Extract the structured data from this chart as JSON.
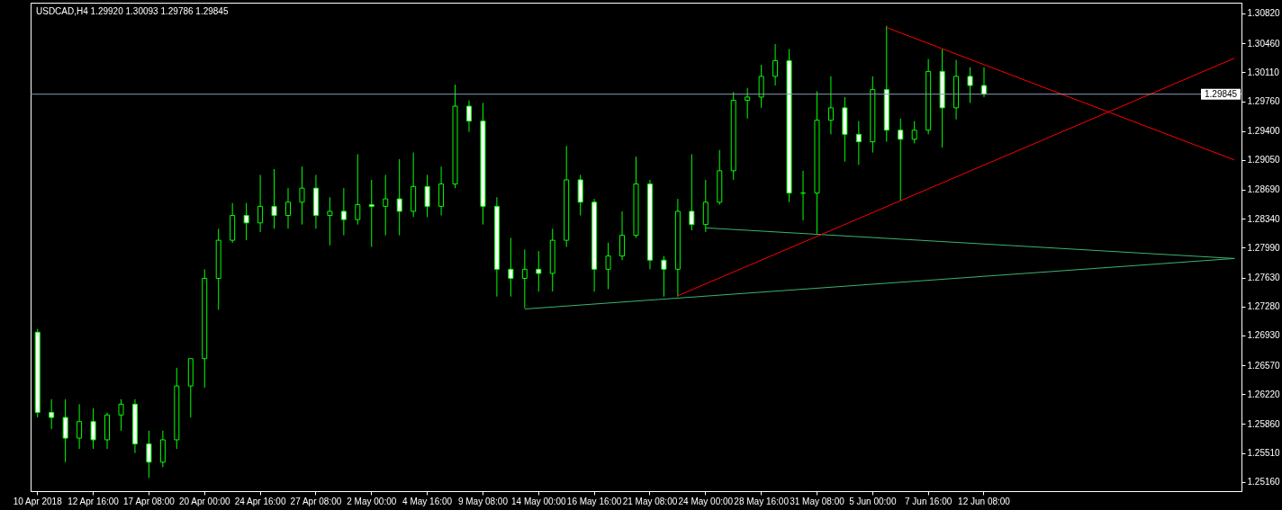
{
  "chart_data": {
    "type": "candlestick",
    "title": "USDCAD,H4  1.29920 1.30093 1.29786 1.29845",
    "color": "#00ff00",
    "categories": [
      "10 Apr 2018",
      null,
      null,
      null,
      "12 Apr 16:00",
      null,
      null,
      null,
      "17 Apr 08:00",
      null,
      null,
      null,
      "20 Apr 00:00",
      null,
      null,
      null,
      "24 Apr 16:00",
      null,
      null,
      null,
      "27 Apr 08:00",
      null,
      null,
      null,
      "2 May 00:00",
      null,
      null,
      null,
      "4 May 16:00",
      null,
      null,
      null,
      "9 May 08:00",
      null,
      null,
      null,
      "14 May 00:00",
      null,
      null,
      null,
      "16 May 16:00",
      null,
      null,
      null,
      "21 May 08:00",
      null,
      null,
      null,
      "24 May 00:00",
      null,
      null,
      null,
      "28 May 16:00",
      null,
      null,
      null,
      "31 May 08:00",
      null,
      null,
      null,
      "5 Jun 00:00",
      null,
      null,
      null,
      "7 Jun 16:00",
      null,
      null,
      null,
      "12 Jun 08:00",
      null,
      null,
      null,
      null,
      null,
      null,
      null,
      null,
      null,
      null,
      null,
      null,
      null,
      null,
      null,
      null,
      null,
      null
    ],
    "ohlc": [
      [
        1.2697,
        1.2701,
        1.2594,
        1.26
      ],
      [
        1.26,
        1.2616,
        1.258,
        1.2594
      ],
      [
        1.2594,
        1.2616,
        1.254,
        1.2569
      ],
      [
        1.2569,
        1.261,
        1.2556,
        1.2589
      ],
      [
        1.2589,
        1.2605,
        1.2556,
        1.2567
      ],
      [
        1.2567,
        1.26,
        1.2556,
        1.2597
      ],
      [
        1.2597,
        1.2616,
        1.2578,
        1.261
      ],
      [
        1.261,
        1.2616,
        1.2551,
        1.2562
      ],
      [
        1.2562,
        1.2578,
        1.2521,
        1.254
      ],
      [
        1.254,
        1.2578,
        1.2534,
        1.2567
      ],
      [
        1.2567,
        1.2654,
        1.2556,
        1.2632
      ],
      [
        1.2632,
        1.2665,
        1.2594,
        1.2665
      ],
      [
        1.2665,
        1.2773,
        1.263,
        1.2762
      ],
      [
        1.2762,
        1.2822,
        1.2724,
        1.2808
      ],
      [
        1.2808,
        1.2853,
        1.2805,
        1.2838
      ],
      [
        1.2838,
        1.2853,
        1.2808,
        1.2829
      ],
      [
        1.2829,
        1.2887,
        1.2818,
        1.2849
      ],
      [
        1.2849,
        1.2894,
        1.2822,
        1.2838
      ],
      [
        1.2838,
        1.2871,
        1.2822,
        1.2854
      ],
      [
        1.2854,
        1.2897,
        1.2827,
        1.2871
      ],
      [
        1.2871,
        1.2887,
        1.2822,
        1.2838
      ],
      [
        1.2838,
        1.286,
        1.2802,
        1.2843
      ],
      [
        1.2843,
        1.2871,
        1.2814,
        1.2833
      ],
      [
        1.2833,
        1.2912,
        1.2827,
        1.2851
      ],
      [
        1.2851,
        1.2881,
        1.28,
        1.2849
      ],
      [
        1.2849,
        1.2887,
        1.2814,
        1.2858
      ],
      [
        1.2858,
        1.2906,
        1.2814,
        1.2843
      ],
      [
        1.2843,
        1.2914,
        1.2836,
        1.2873
      ],
      [
        1.2873,
        1.2887,
        1.2836,
        1.2849
      ],
      [
        1.2849,
        1.2897,
        1.2838,
        1.2876
      ],
      [
        1.2876,
        1.2996,
        1.2871,
        1.297
      ],
      [
        1.297,
        1.2977,
        1.2939,
        1.2952
      ],
      [
        1.2952,
        1.2974,
        1.2827,
        1.2849
      ],
      [
        1.2849,
        1.286,
        1.274,
        1.2773
      ],
      [
        1.2773,
        1.2811,
        1.274,
        1.2762
      ],
      [
        1.2762,
        1.2797,
        1.2726,
        1.2773
      ],
      [
        1.2773,
        1.2795,
        1.2746,
        1.2768
      ],
      [
        1.2768,
        1.2822,
        1.2746,
        1.2808
      ],
      [
        1.2808,
        1.2922,
        1.28,
        1.2881
      ],
      [
        1.2881,
        1.2887,
        1.2838,
        1.2854
      ],
      [
        1.2854,
        1.2858,
        1.2746,
        1.2773
      ],
      [
        1.2773,
        1.2805,
        1.2749,
        1.2789
      ],
      [
        1.2789,
        1.2843,
        1.2784,
        1.2814
      ],
      [
        1.2814,
        1.2909,
        1.2811,
        1.2876
      ],
      [
        1.2876,
        1.2881,
        1.2773,
        1.2784
      ],
      [
        1.2784,
        1.2789,
        1.274,
        1.2773
      ],
      [
        1.2773,
        1.2858,
        1.274,
        1.2843
      ],
      [
        1.2843,
        1.2912,
        1.282,
        1.2827
      ],
      [
        1.2827,
        1.2881,
        1.2818,
        1.2854
      ],
      [
        1.2854,
        1.2917,
        1.2851,
        1.2892
      ],
      [
        1.2892,
        1.2987,
        1.2881,
        1.2977
      ],
      [
        1.2977,
        1.2992,
        1.2955,
        1.2981
      ],
      [
        1.2981,
        1.302,
        1.2968,
        1.3006
      ],
      [
        1.3006,
        1.3045,
        1.2995,
        1.3025
      ],
      [
        1.3025,
        1.3039,
        1.2854,
        1.2865
      ],
      [
        1.2865,
        1.2892,
        1.2832,
        1.2865
      ],
      [
        1.2865,
        1.2988,
        1.2816,
        1.2953
      ],
      [
        1.2953,
        1.3006,
        1.2936,
        1.2968
      ],
      [
        1.2968,
        1.2981,
        1.2903,
        1.2936
      ],
      [
        1.2936,
        1.2952,
        1.2899,
        1.2927
      ],
      [
        1.2927,
        1.3006,
        1.2914,
        1.299
      ],
      [
        1.299,
        1.3067,
        1.2927,
        1.2941
      ],
      [
        1.2941,
        1.2955,
        1.2856,
        1.293
      ],
      [
        1.293,
        1.2952,
        1.2925,
        1.2941
      ],
      [
        1.2941,
        1.3027,
        1.2936,
        1.3012
      ],
      [
        1.3012,
        1.3039,
        1.292,
        1.2968
      ],
      [
        1.2968,
        1.3026,
        1.2954,
        1.3006
      ],
      [
        1.3006,
        1.3017,
        1.2974,
        1.2995
      ],
      [
        1.2995,
        1.3017,
        1.2981,
        1.29845
      ],
      null,
      null,
      null,
      null,
      null,
      null,
      null,
      null,
      null,
      null,
      null,
      null,
      null,
      null,
      null,
      null,
      null,
      null
    ],
    "series": [
      {
        "type": "line",
        "color": "#3cb371",
        "values": [
          null,
          null,
          null,
          null,
          null,
          null,
          null,
          null,
          null,
          null,
          null,
          null,
          null,
          null,
          null,
          null,
          null,
          null,
          null,
          null,
          null,
          null,
          null,
          null,
          null,
          null,
          null,
          null,
          null,
          null,
          null,
          null,
          null,
          null,
          null,
          1.2725,
          null,
          null,
          null,
          null,
          null,
          null,
          null,
          null,
          null,
          null,
          null,
          null,
          null,
          null,
          null,
          null,
          null,
          null,
          null,
          null,
          null,
          null,
          null,
          null,
          null,
          null,
          null,
          null,
          null,
          null,
          null,
          null,
          null,
          null,
          null,
          null,
          null,
          null,
          null,
          null,
          null,
          null,
          null,
          null,
          null,
          null,
          null,
          null,
          null,
          null,
          1.2786
        ]
      },
      {
        "type": "line",
        "color": "#3cb371",
        "values": [
          null,
          null,
          null,
          null,
          null,
          null,
          null,
          null,
          null,
          null,
          null,
          null,
          null,
          null,
          null,
          null,
          null,
          null,
          null,
          null,
          null,
          null,
          null,
          null,
          null,
          null,
          null,
          null,
          null,
          null,
          null,
          null,
          null,
          null,
          null,
          null,
          null,
          null,
          null,
          null,
          null,
          null,
          null,
          null,
          null,
          null,
          null,
          null,
          1.2823,
          null,
          null,
          null,
          null,
          null,
          null,
          null,
          null,
          null,
          null,
          null,
          null,
          null,
          null,
          null,
          null,
          null,
          null,
          null,
          null,
          null,
          null,
          null,
          null,
          null,
          null,
          null,
          null,
          null,
          null,
          null,
          null,
          null,
          null,
          null,
          null,
          null,
          1.2786
        ]
      },
      {
        "type": "line",
        "color": "#ff0000",
        "values": [
          null,
          null,
          null,
          null,
          null,
          null,
          null,
          null,
          null,
          null,
          null,
          null,
          null,
          null,
          null,
          null,
          null,
          null,
          null,
          null,
          null,
          null,
          null,
          null,
          null,
          null,
          null,
          null,
          null,
          null,
          null,
          null,
          null,
          null,
          null,
          null,
          null,
          null,
          null,
          null,
          null,
          null,
          null,
          null,
          null,
          null,
          1.2741,
          null,
          null,
          null,
          null,
          null,
          null,
          null,
          null,
          null,
          null,
          null,
          null,
          null,
          null,
          null,
          null,
          null,
          null,
          null,
          null,
          null,
          null,
          null,
          null,
          null,
          null,
          null,
          null,
          null,
          null,
          null,
          null,
          null,
          null,
          null,
          null,
          null,
          null,
          null,
          1.3028
        ]
      },
      {
        "type": "line",
        "color": "#ff0000",
        "values": [
          null,
          null,
          null,
          null,
          null,
          null,
          null,
          null,
          null,
          null,
          null,
          null,
          null,
          null,
          null,
          null,
          null,
          null,
          null,
          null,
          null,
          null,
          null,
          null,
          null,
          null,
          null,
          null,
          null,
          null,
          null,
          null,
          null,
          null,
          null,
          null,
          null,
          null,
          null,
          null,
          null,
          null,
          null,
          null,
          null,
          null,
          null,
          null,
          null,
          null,
          null,
          null,
          null,
          null,
          null,
          null,
          null,
          null,
          null,
          null,
          null,
          1.3065,
          null,
          null,
          null,
          null,
          null,
          null,
          null,
          null,
          null,
          null,
          null,
          null,
          null,
          null,
          null,
          null,
          null,
          null,
          null,
          null,
          null,
          null,
          null,
          null,
          1.2905
        ]
      }
    ],
    "ylim": [
      1.2505,
      1.3095
    ],
    "yticks": [
      {
        "value": 1.2516,
        "label": "1.25160"
      },
      {
        "value": 1.2551,
        "label": "1.25510"
      },
      {
        "value": 1.2586,
        "label": "1.25860"
      },
      {
        "value": 1.2622,
        "label": "1.26220"
      },
      {
        "value": 1.2657,
        "label": "1.26570"
      },
      {
        "value": 1.2693,
        "label": "1.26930"
      },
      {
        "value": 1.2728,
        "label": "1.27280"
      },
      {
        "value": 1.2763,
        "label": "1.27630"
      },
      {
        "value": 1.2799,
        "label": "1.27990"
      },
      {
        "value": 1.2834,
        "label": "1.28340"
      },
      {
        "value": 1.2869,
        "label": "1.28690"
      },
      {
        "value": 1.2905,
        "label": "1.29050"
      },
      {
        "value": 1.294,
        "label": "1.29400"
      },
      {
        "value": 1.2976,
        "label": "1.29760"
      },
      {
        "value": 1.3011,
        "label": "1.30110"
      },
      {
        "value": 1.3046,
        "label": "1.30460"
      },
      {
        "value": 1.3082,
        "label": "1.30820"
      }
    ],
    "ref_lines": [
      {
        "axis": "y",
        "value": 1.29845,
        "label": "1.29845",
        "color": "#8a9bb5"
      }
    ]
  }
}
